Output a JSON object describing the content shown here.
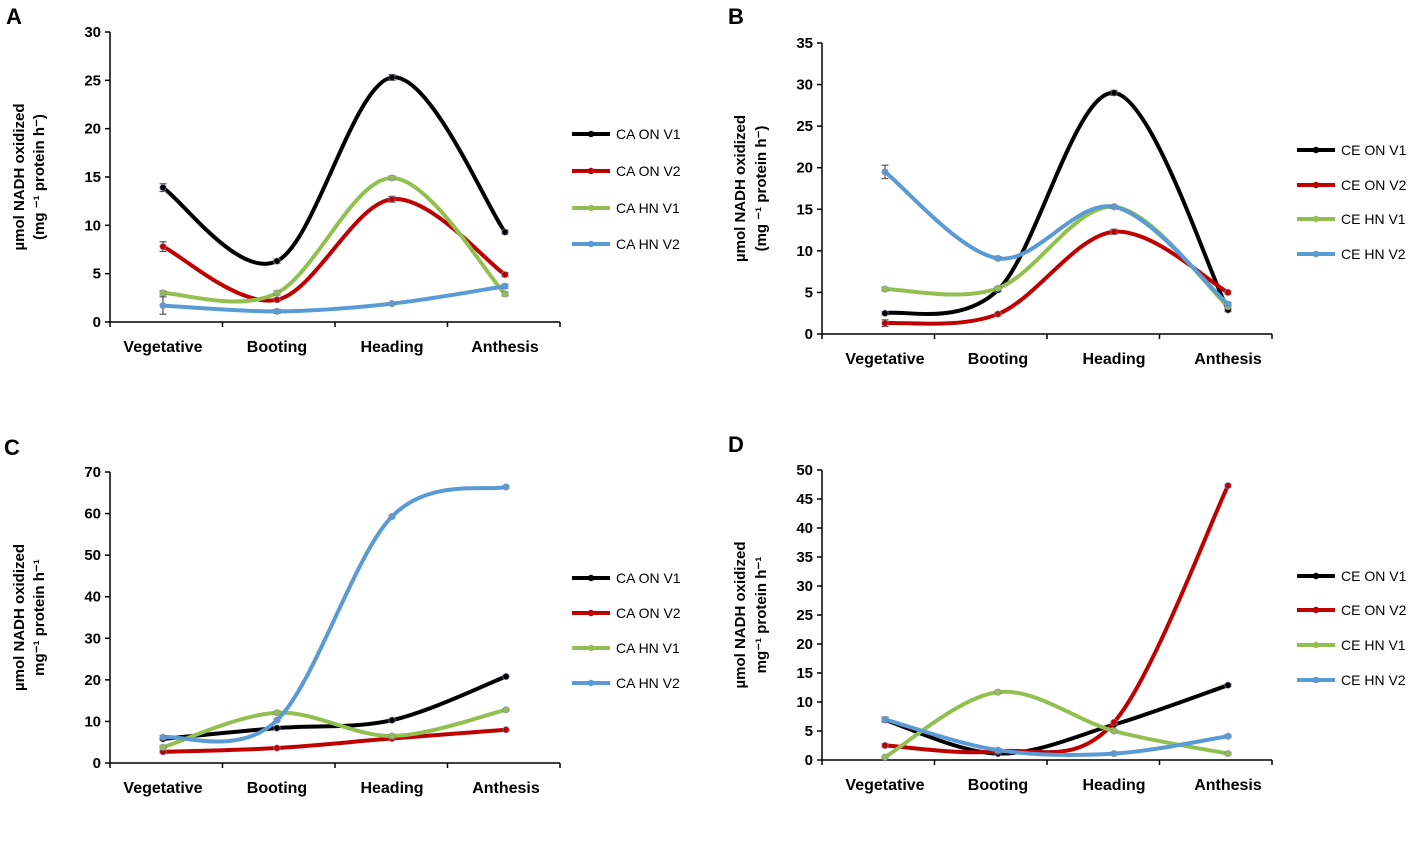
{
  "chart_data": [
    {
      "type": "line",
      "panel_label": "A",
      "title": "",
      "xlabel": "",
      "ylabel_line1": "µmol NADH oxidized",
      "ylabel_line2": "(mg ⁻¹ protein h⁻)",
      "categories": [
        "Vegetative",
        "Booting",
        "Heading",
        "Anthesis"
      ],
      "ylim": [
        0,
        30
      ],
      "yticks": [
        0,
        5,
        10,
        15,
        20,
        25,
        30
      ],
      "legend_position": "right",
      "series": [
        {
          "name": "CA ON V1",
          "color": "#000000",
          "values": [
            13.9,
            6.3,
            25.3,
            9.3
          ],
          "errors": [
            0.4,
            0.2,
            0.3,
            0.2
          ]
        },
        {
          "name": "CA ON V2",
          "color": "#c00000",
          "values": [
            7.8,
            2.3,
            12.7,
            4.9
          ],
          "errors": [
            0.5,
            0.2,
            0.3,
            0.2
          ]
        },
        {
          "name": "CA HN V1",
          "color": "#92c050",
          "values": [
            3.0,
            3.0,
            14.9,
            2.9
          ],
          "errors": [
            0.2,
            0.2,
            0.2,
            0.2
          ]
        },
        {
          "name": "CA HN V2",
          "color": "#5a9bd5",
          "values": [
            1.7,
            1.1,
            1.9,
            3.7
          ],
          "errors": [
            0.9,
            0.2,
            0.1,
            0.2
          ]
        }
      ]
    },
    {
      "type": "line",
      "panel_label": "B",
      "title": "",
      "xlabel": "",
      "ylabel_line1": "µmol NADH oxidized",
      "ylabel_line2": "(mg ⁻¹ protein h⁻)",
      "categories": [
        "Vegetative",
        "Booting",
        "Heading",
        "Anthesis"
      ],
      "ylim": [
        0,
        35
      ],
      "yticks": [
        0,
        5,
        10,
        15,
        20,
        25,
        30,
        35
      ],
      "legend_position": "right",
      "series": [
        {
          "name": "CE ON V1",
          "color": "#000000",
          "values": [
            2.5,
            5.3,
            29.0,
            2.9
          ],
          "errors": [
            0.2,
            0.2,
            0.3,
            0.2
          ]
        },
        {
          "name": "CE ON V2",
          "color": "#c00000",
          "values": [
            1.3,
            2.4,
            12.3,
            5.0
          ],
          "errors": [
            0.4,
            0.2,
            0.3,
            0.2
          ]
        },
        {
          "name": "CE HN V1",
          "color": "#92c050",
          "values": [
            5.4,
            5.5,
            15.3,
            3.3
          ],
          "errors": [
            0.2,
            0.2,
            0.2,
            0.2
          ]
        },
        {
          "name": "CE HN V2",
          "color": "#5a9bd5",
          "values": [
            19.5,
            9.1,
            15.3,
            3.6
          ],
          "errors": [
            0.8,
            0.2,
            0.2,
            0.2
          ]
        }
      ]
    },
    {
      "type": "line",
      "panel_label": "C",
      "title": "",
      "xlabel": "",
      "ylabel_line1": "µmol NADH oxidized",
      "ylabel_line2": "mg⁻¹ protein h⁻¹",
      "categories": [
        "Vegetative",
        "Booting",
        "Heading",
        "Anthesis"
      ],
      "ylim": [
        0,
        70
      ],
      "yticks": [
        0,
        10,
        20,
        30,
        40,
        50,
        60,
        70
      ],
      "legend_position": "right",
      "series": [
        {
          "name": "CA ON V1",
          "color": "#000000",
          "values": [
            5.8,
            8.4,
            10.3,
            20.8
          ],
          "errors": [
            0.3,
            0.3,
            0.3,
            0.3
          ]
        },
        {
          "name": "CA ON V2",
          "color": "#c00000",
          "values": [
            2.7,
            3.6,
            5.9,
            8.0
          ],
          "errors": [
            0.3,
            0.3,
            0.3,
            0.3
          ]
        },
        {
          "name": "CA HN V1",
          "color": "#92c050",
          "values": [
            3.8,
            12.1,
            6.5,
            12.8
          ],
          "errors": [
            0.3,
            0.3,
            0.3,
            0.3
          ]
        },
        {
          "name": "CA HN V2",
          "color": "#5a9bd5",
          "values": [
            6.2,
            10.3,
            59.3,
            66.4
          ],
          "errors": [
            0.4,
            0.3,
            0.3,
            0.3
          ]
        }
      ]
    },
    {
      "type": "line",
      "panel_label": "D",
      "title": "",
      "xlabel": "",
      "ylabel_line1": "µmol NADH oxidized",
      "ylabel_line2": "mg⁻¹ protein h⁻¹",
      "categories": [
        "Vegetative",
        "Booting",
        "Heading",
        "Anthesis"
      ],
      "ylim": [
        0,
        50
      ],
      "yticks": [
        0,
        5,
        10,
        15,
        20,
        25,
        30,
        35,
        40,
        45,
        50
      ],
      "legend_position": "right",
      "series": [
        {
          "name": "CE ON V1",
          "color": "#000000",
          "values": [
            6.9,
            1.1,
            6.1,
            12.9
          ],
          "errors": [
            0.3,
            0.2,
            0.2,
            0.2
          ]
        },
        {
          "name": "CE ON V2",
          "color": "#c00000",
          "values": [
            2.5,
            1.5,
            6.5,
            47.3
          ],
          "errors": [
            0.3,
            0.2,
            0.2,
            0.2
          ]
        },
        {
          "name": "CE HN V1",
          "color": "#92c050",
          "values": [
            0.5,
            11.7,
            5.0,
            1.1
          ],
          "errors": [
            0.2,
            0.2,
            0.2,
            0.2
          ]
        },
        {
          "name": "CE HN V2",
          "color": "#5a9bd5",
          "values": [
            7.0,
            1.7,
            1.1,
            4.1
          ],
          "errors": [
            0.4,
            0.2,
            0.2,
            0.2
          ]
        }
      ]
    }
  ]
}
